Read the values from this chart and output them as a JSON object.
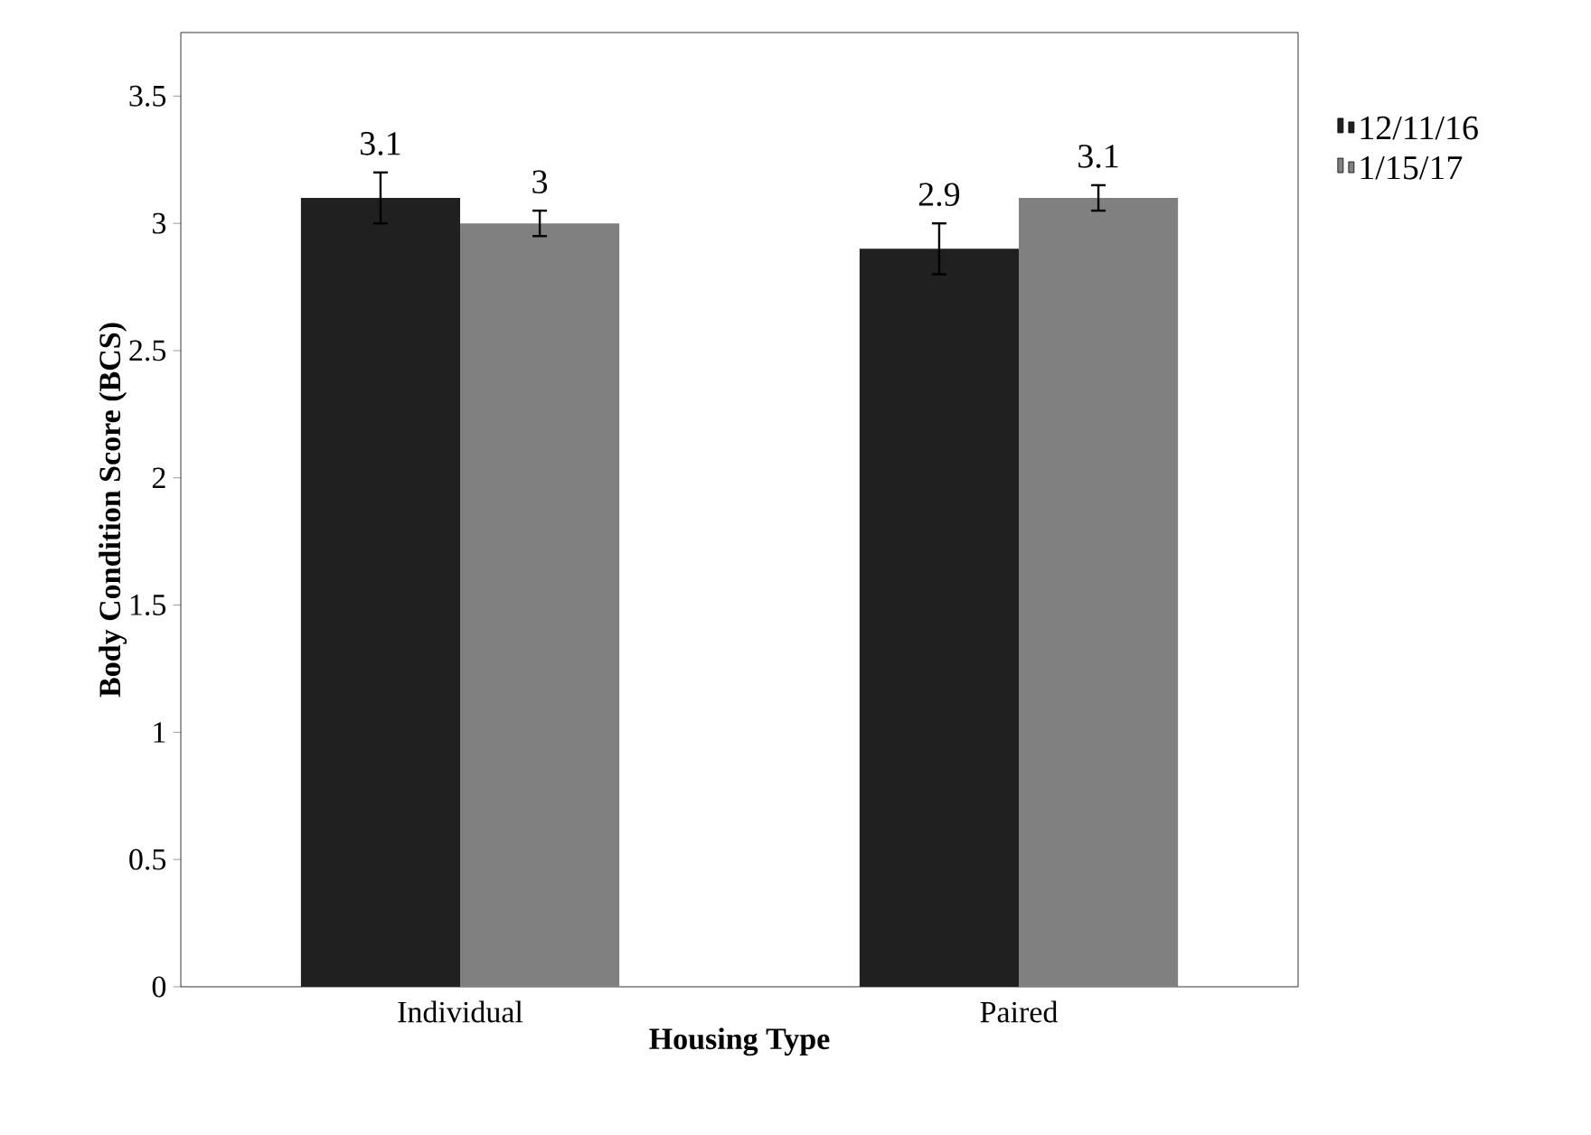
{
  "chart_data": {
    "type": "bar",
    "xlabel": "Housing Type",
    "ylabel": "Body Condition Score (BCS)",
    "categories": [
      "Individual",
      "Paired"
    ],
    "series": [
      {
        "name": "12/11/16",
        "color": "#202020",
        "values": [
          3.1,
          2.9
        ],
        "errors": [
          0.1,
          0.1
        ]
      },
      {
        "name": "1/15/17",
        "color": "#808080",
        "values": [
          3,
          3.1
        ],
        "errors": [
          0.05,
          0.05
        ]
      }
    ],
    "ylim": [
      0,
      3.75
    ],
    "yticks": [
      0,
      0.5,
      1,
      1.5,
      2,
      2.5,
      3,
      3.5
    ],
    "data_labels": true,
    "legend": "right",
    "grid": false
  }
}
